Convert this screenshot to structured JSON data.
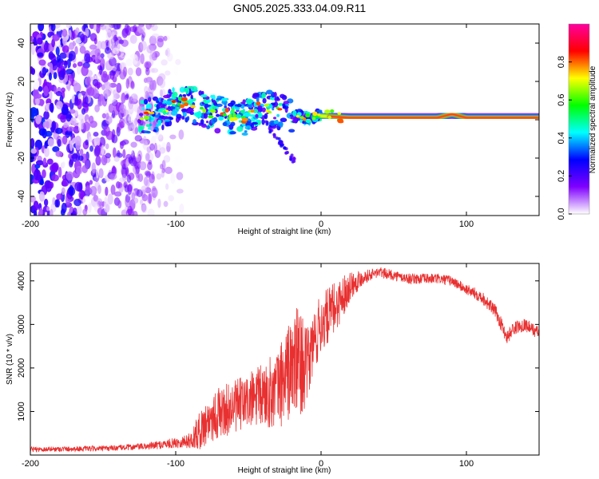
{
  "title": "GN05.2025.333.04.09.R11",
  "chart_data": [
    {
      "type": "heatmap",
      "title": "GN05.2025.333.04.09.R11",
      "xlabel": "Height of straight line (km)",
      "ylabel": "Frequency (Hz)",
      "xlim": [
        -200,
        150
      ],
      "ylim": [
        -50,
        50
      ],
      "xticks": [
        -200,
        -100,
        0,
        100
      ],
      "yticks": [
        -40,
        -20,
        0,
        20,
        40
      ],
      "colorbar": {
        "label": "Normalized spectral amplitude",
        "range": [
          0,
          1
        ],
        "ticks": [
          "0.0",
          "0.2",
          "0.4",
          "0.6",
          "0.8"
        ],
        "tick_values": [
          0.0,
          0.2,
          0.4,
          0.6,
          0.8
        ],
        "colors": [
          "#ffffff",
          "#8000ff",
          "#0000ff",
          "#00ffff",
          "#00ff00",
          "#ffff00",
          "#ff0000",
          "#ff00a0"
        ]
      },
      "ridge": {
        "x": [
          -125,
          -110,
          -100,
          -90,
          -80,
          -70,
          -60,
          -50,
          -45,
          -40,
          -30,
          -20,
          -10,
          0,
          20,
          40,
          60,
          80,
          90,
          100,
          120,
          150
        ],
        "freq_hz": [
          2,
          2,
          9,
          8,
          5,
          3,
          2,
          1,
          5,
          7,
          5,
          2,
          1,
          2,
          1,
          1,
          1,
          1,
          3,
          1,
          1,
          1
        ]
      },
      "noise_region": {
        "x_from": -200,
        "x_to": -95
      }
    },
    {
      "type": "line",
      "xlabel": "Height of straight line (km)",
      "ylabel": "SNR (10 * v/v)",
      "xlim": [
        -200,
        150
      ],
      "ylim": [
        0,
        4400
      ],
      "xticks": [
        -200,
        -100,
        0,
        100
      ],
      "yticks": [
        1000,
        2000,
        3000,
        4000
      ],
      "color": "#e83030",
      "envelope": {
        "x": [
          -200,
          -150,
          -120,
          -100,
          -90,
          -85,
          -75,
          -60,
          -45,
          -30,
          -25,
          -15,
          -10,
          -5,
          0,
          10,
          20,
          30,
          40,
          60,
          80,
          90,
          100,
          110,
          120,
          128,
          132,
          140,
          150
        ],
        "mean": [
          130,
          150,
          200,
          280,
          330,
          500,
          900,
          1100,
          1300,
          1500,
          1800,
          2200,
          2000,
          2600,
          3000,
          3400,
          3900,
          4100,
          4200,
          4050,
          4050,
          4000,
          3800,
          3650,
          3300,
          2700,
          2900,
          3000,
          2800
        ],
        "jitter": [
          60,
          60,
          80,
          120,
          180,
          400,
          600,
          600,
          700,
          900,
          1100,
          1300,
          900,
          800,
          700,
          600,
          350,
          150,
          120,
          120,
          120,
          120,
          120,
          150,
          150,
          180,
          150,
          150,
          150
        ]
      }
    }
  ]
}
